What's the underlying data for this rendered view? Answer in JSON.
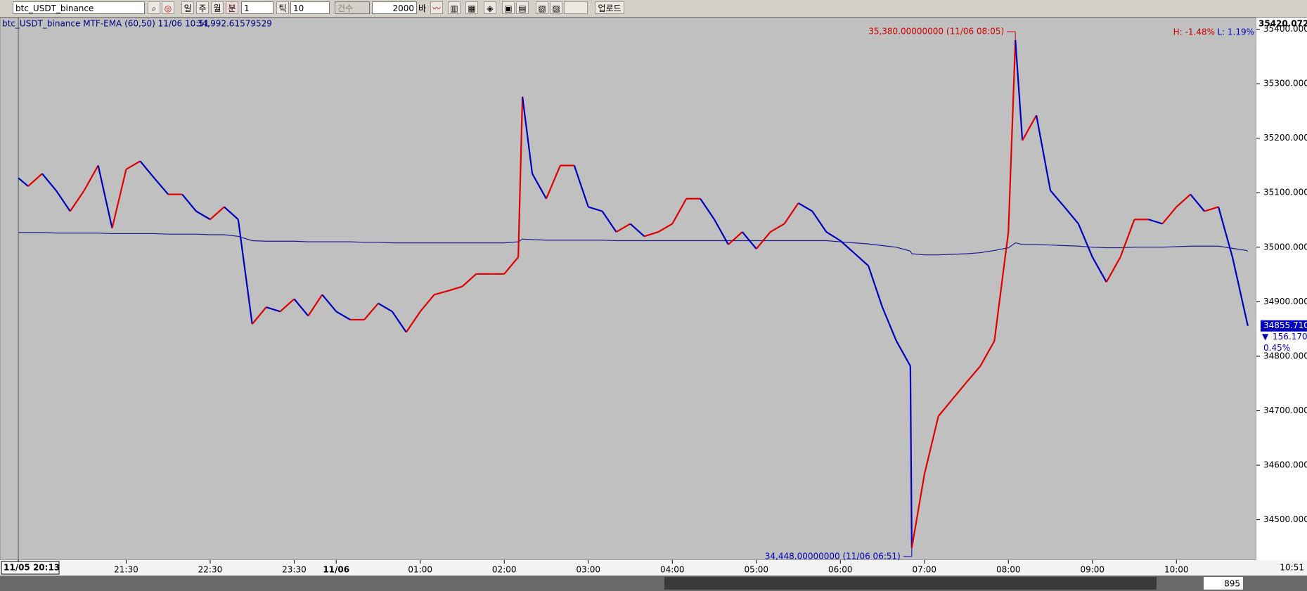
{
  "toolbar": {
    "symbol": "btc_USDT_binance",
    "periods": [
      "일",
      "주",
      "월",
      "분"
    ],
    "interval": "1",
    "tick_label": "틱",
    "tick_value": "10",
    "count_label": "건수",
    "count": "2000",
    "bar_label": "바",
    "upload": "업로드"
  },
  "footer": {
    "position": "895"
  },
  "chart_data": {
    "type": "line",
    "indicator_label": "btc_USDT_binance MTF-EMA  (60,50) 11/06 10:51",
    "indicator_value": "34,992.61579529",
    "high_change": "H: -1.48%",
    "low_change": "L: 1.19%",
    "axis_top_label": "35420.072",
    "last_price": {
      "value": 34855.71,
      "label": "34855.7100"
    },
    "change_label": "156.1700",
    "change_percent": "0.45%",
    "x_end_label": "10:51",
    "annotations": [
      {
        "text": "35,380.00000000 (11/06 08:05)",
        "x": "08:05",
        "value": 35380,
        "color": "#d00000"
      },
      {
        "text": "34,448.00000000 (11/06 06:51)",
        "x": "06:51",
        "value": 34448,
        "color": "#0000c0"
      }
    ],
    "x": [
      "20:13",
      "20:20",
      "20:30",
      "20:40",
      "20:50",
      "21:00",
      "21:10",
      "21:20",
      "21:30",
      "21:40",
      "21:50",
      "22:00",
      "22:10",
      "22:20",
      "22:30",
      "22:40",
      "22:50",
      "23:00",
      "23:10",
      "23:20",
      "23:30",
      "23:40",
      "23:50",
      "00:00",
      "00:10",
      "00:20",
      "00:30",
      "00:40",
      "00:50",
      "01:00",
      "01:10",
      "01:20",
      "01:30",
      "01:40",
      "01:50",
      "02:00",
      "02:10",
      "02:13",
      "02:20",
      "02:30",
      "02:40",
      "02:50",
      "03:00",
      "03:10",
      "03:20",
      "03:30",
      "03:40",
      "03:50",
      "04:00",
      "04:10",
      "04:20",
      "04:30",
      "04:40",
      "04:50",
      "05:00",
      "05:10",
      "05:20",
      "05:30",
      "05:40",
      "05:50",
      "06:00",
      "06:10",
      "06:20",
      "06:30",
      "06:40",
      "06:50",
      "06:51",
      "07:00",
      "07:10",
      "07:20",
      "07:30",
      "07:40",
      "07:50",
      "08:00",
      "08:05",
      "08:10",
      "08:20",
      "08:30",
      "08:40",
      "08:50",
      "09:00",
      "09:10",
      "09:20",
      "09:30",
      "09:40",
      "09:50",
      "10:00",
      "10:10",
      "10:20",
      "10:30",
      "10:40",
      "10:50",
      "10:51"
    ],
    "series": [
      {
        "up_color": "#e00000",
        "down_color": "#0000c0",
        "values": [
          35127,
          35112,
          35135,
          35104,
          35066,
          35104,
          35150,
          35035,
          35143,
          35158,
          35127,
          35097,
          35097,
          35066,
          35051,
          35074,
          35051,
          34859,
          34890,
          34882,
          34905,
          34874,
          34913,
          34882,
          34867,
          34867,
          34897,
          34882,
          34844,
          34882,
          34913,
          34920,
          34928,
          34951,
          34951,
          34951,
          34982,
          35276,
          35135,
          35089,
          35150,
          35150,
          35074,
          35066,
          35028,
          35043,
          35020,
          35028,
          35043,
          35089,
          35089,
          35051,
          35005,
          35028,
          34997,
          35028,
          35043,
          35081,
          35066,
          35028,
          35012,
          34989,
          34966,
          34890,
          34828,
          34782,
          34448,
          34583,
          34690,
          34721,
          34752,
          34782,
          34828,
          35028,
          35380,
          35196,
          35242,
          35104,
          35074,
          35043,
          34982,
          34936,
          34982,
          35051,
          35051,
          35043,
          35074,
          35097,
          35066,
          35074,
          34982,
          34867,
          34855.71
        ]
      },
      {
        "color": "#1a1a8c",
        "values": [
          35027,
          35027,
          35027,
          35026,
          35026,
          35026,
          35026,
          35025,
          35025,
          35025,
          35025,
          35024,
          35024,
          35024,
          35023,
          35023,
          35020,
          35012,
          35011,
          35011,
          35011,
          35010,
          35010,
          35010,
          35010,
          35009,
          35009,
          35008,
          35008,
          35008,
          35008,
          35008,
          35008,
          35008,
          35008,
          35008,
          35010,
          35015,
          35014,
          35013,
          35013,
          35013,
          35013,
          35013,
          35012,
          35012,
          35012,
          35012,
          35012,
          35012,
          35012,
          35012,
          35012,
          35012,
          35012,
          35012,
          35012,
          35012,
          35012,
          35012,
          35010,
          35008,
          35006,
          35003,
          35000,
          34993,
          34988,
          34986,
          34986,
          34987,
          34988,
          34990,
          34994,
          34999,
          35008,
          35005,
          35005,
          35004,
          35003,
          35002,
          35000,
          34999,
          34999,
          35000,
          35000,
          35000,
          35001,
          35002,
          35002,
          35002,
          34998,
          34994,
          34992.61579529
        ]
      }
    ],
    "ylim": [
      34426,
      35420.072
    ],
    "yticks": [
      {
        "value": 34500,
        "label": "34500.0000"
      },
      {
        "value": 34600,
        "label": "34600.0000"
      },
      {
        "value": 34700,
        "label": "34700.0000"
      },
      {
        "value": 34800,
        "label": "34800.0000"
      },
      {
        "value": 34900,
        "label": "34900.0000"
      },
      {
        "value": 35000,
        "label": "35000.0000"
      },
      {
        "value": 35100,
        "label": "35100.0000"
      },
      {
        "value": 35200,
        "label": "35200.0000"
      },
      {
        "value": 35300,
        "label": "35300.0000"
      },
      {
        "value": 35400,
        "label": "35400.0000"
      }
    ],
    "xticks": [
      {
        "value": "20:13",
        "label": "11/05 20:13"
      },
      "21:30",
      "22:30",
      "23:30",
      {
        "value": "00:00",
        "label": "11/06"
      },
      "01:00",
      "02:00",
      "03:00",
      "04:00",
      "05:00",
      "06:00",
      "07:00",
      "08:00",
      "09:00",
      "10:00"
    ]
  }
}
